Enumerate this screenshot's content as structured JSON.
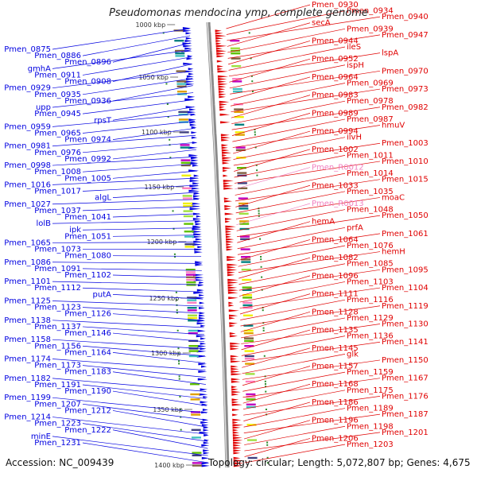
{
  "title": "Pseudomonas mendocina ymp, complete genome",
  "accession": "Accession: NC_009439",
  "topology": "Topology: circular; Length: 5,072,807 bp; Genes: 4,675",
  "colors": {
    "forward_strand": "#0000e0",
    "reverse_strand": "#e00000",
    "rna": "#f080c0",
    "backbone": "#8a8a8a",
    "tick": "#2a8a2a"
  },
  "scale_ticks": [
    "1000 kbp",
    "1050 kbp",
    "1100 kbp",
    "1150 kbp",
    "1200 kbp",
    "1250 kbp",
    "1300 kbp",
    "1350 kbp",
    "1400 kbp"
  ],
  "left_labels": [
    "Pmen_0875",
    "Pmen_0886",
    "Pmen_0896",
    "gmhA",
    "Pmen_0911",
    "Pmen_0908",
    "Pmen_0929",
    "Pmen_0935",
    "Pmen_0936",
    "upp",
    "Pmen_0945",
    "rpsT",
    "Pmen_0959",
    "Pmen_0965",
    "Pmen_0974",
    "Pmen_0981",
    "Pmen_0976",
    "Pmen_0992",
    "Pmen_0998",
    "Pmen_1008",
    "Pmen_1005",
    "Pmen_1016",
    "Pmen_1017",
    "algL",
    "Pmen_1027",
    "Pmen_1037",
    "Pmen_1041",
    "lolB",
    "ipk",
    "Pmen_1051",
    "Pmen_1065",
    "Pmen_1073",
    "Pmen_1080",
    "Pmen_1086",
    "Pmen_1091",
    "Pmen_1102",
    "Pmen_1101",
    "Pmen_1112",
    "putA",
    "Pmen_1125",
    "Pmen_1123",
    "Pmen_1126",
    "Pmen_1138",
    "Pmen_1137",
    "Pmen_1146",
    "Pmen_1158",
    "Pmen_1156",
    "Pmen_1164",
    "Pmen_1174",
    "Pmen_1173",
    "Pmen_1183",
    "Pmen_1182",
    "Pmen_1191",
    "Pmen_1190",
    "Pmen_1199",
    "Pmen_1207",
    "Pmen_1212",
    "Pmen_1214",
    "Pmen_1223",
    "Pmen_1222",
    "minE",
    "Pmen_1231"
  ],
  "right_labels": [
    "Pmen_0930",
    "Pmen_0934",
    "Pmen_0940",
    "secA",
    "Pmen_0939",
    "Pmen_0947",
    "Pmen_0944",
    "ileS",
    "lspA",
    "Pmen_0952",
    "ispH",
    "Pmen_0970",
    "Pmen_0964",
    "Pmen_0969",
    "Pmen_0973",
    "Pmen_0983",
    "Pmen_0978",
    "Pmen_0982",
    "Pmen_0989",
    "Pmen_0987",
    "hmuV",
    "Pmen_0994",
    "ilvH",
    "Pmen_1003",
    "Pmen_1002",
    "Pmen_1011",
    "Pmen_1010",
    "Pmen_R0012",
    "Pmen_1014",
    "Pmen_1015",
    "Pmen_1033",
    "Pmen_1035",
    "moaC",
    "Pmen_R0013",
    "Pmen_1048",
    "Pmen_1050",
    "hemA",
    "prfA",
    "Pmen_1061",
    "Pmen_1064",
    "Pmen_1076",
    "hemH",
    "Pmen_1082",
    "Pmen_1085",
    "Pmen_1095",
    "Pmen_1096",
    "Pmen_1103",
    "Pmen_1104",
    "Pmen_1111",
    "Pmen_1116",
    "Pmen_1119",
    "Pmen_1128",
    "Pmen_1129",
    "Pmen_1130",
    "Pmen_1135",
    "Pmen_1136",
    "Pmen_1141",
    "Pmen_1145",
    "glk",
    "Pmen_1150",
    "Pmen_1157",
    "Pmen_1159",
    "Pmen_1167",
    "Pmen_1168",
    "Pmen_1175",
    "Pmen_1176",
    "Pmen_1186",
    "Pmen_1189",
    "Pmen_1187",
    "Pmen_1196",
    "Pmen_1198",
    "Pmen_1201",
    "Pmen_1206",
    "Pmen_1203"
  ]
}
